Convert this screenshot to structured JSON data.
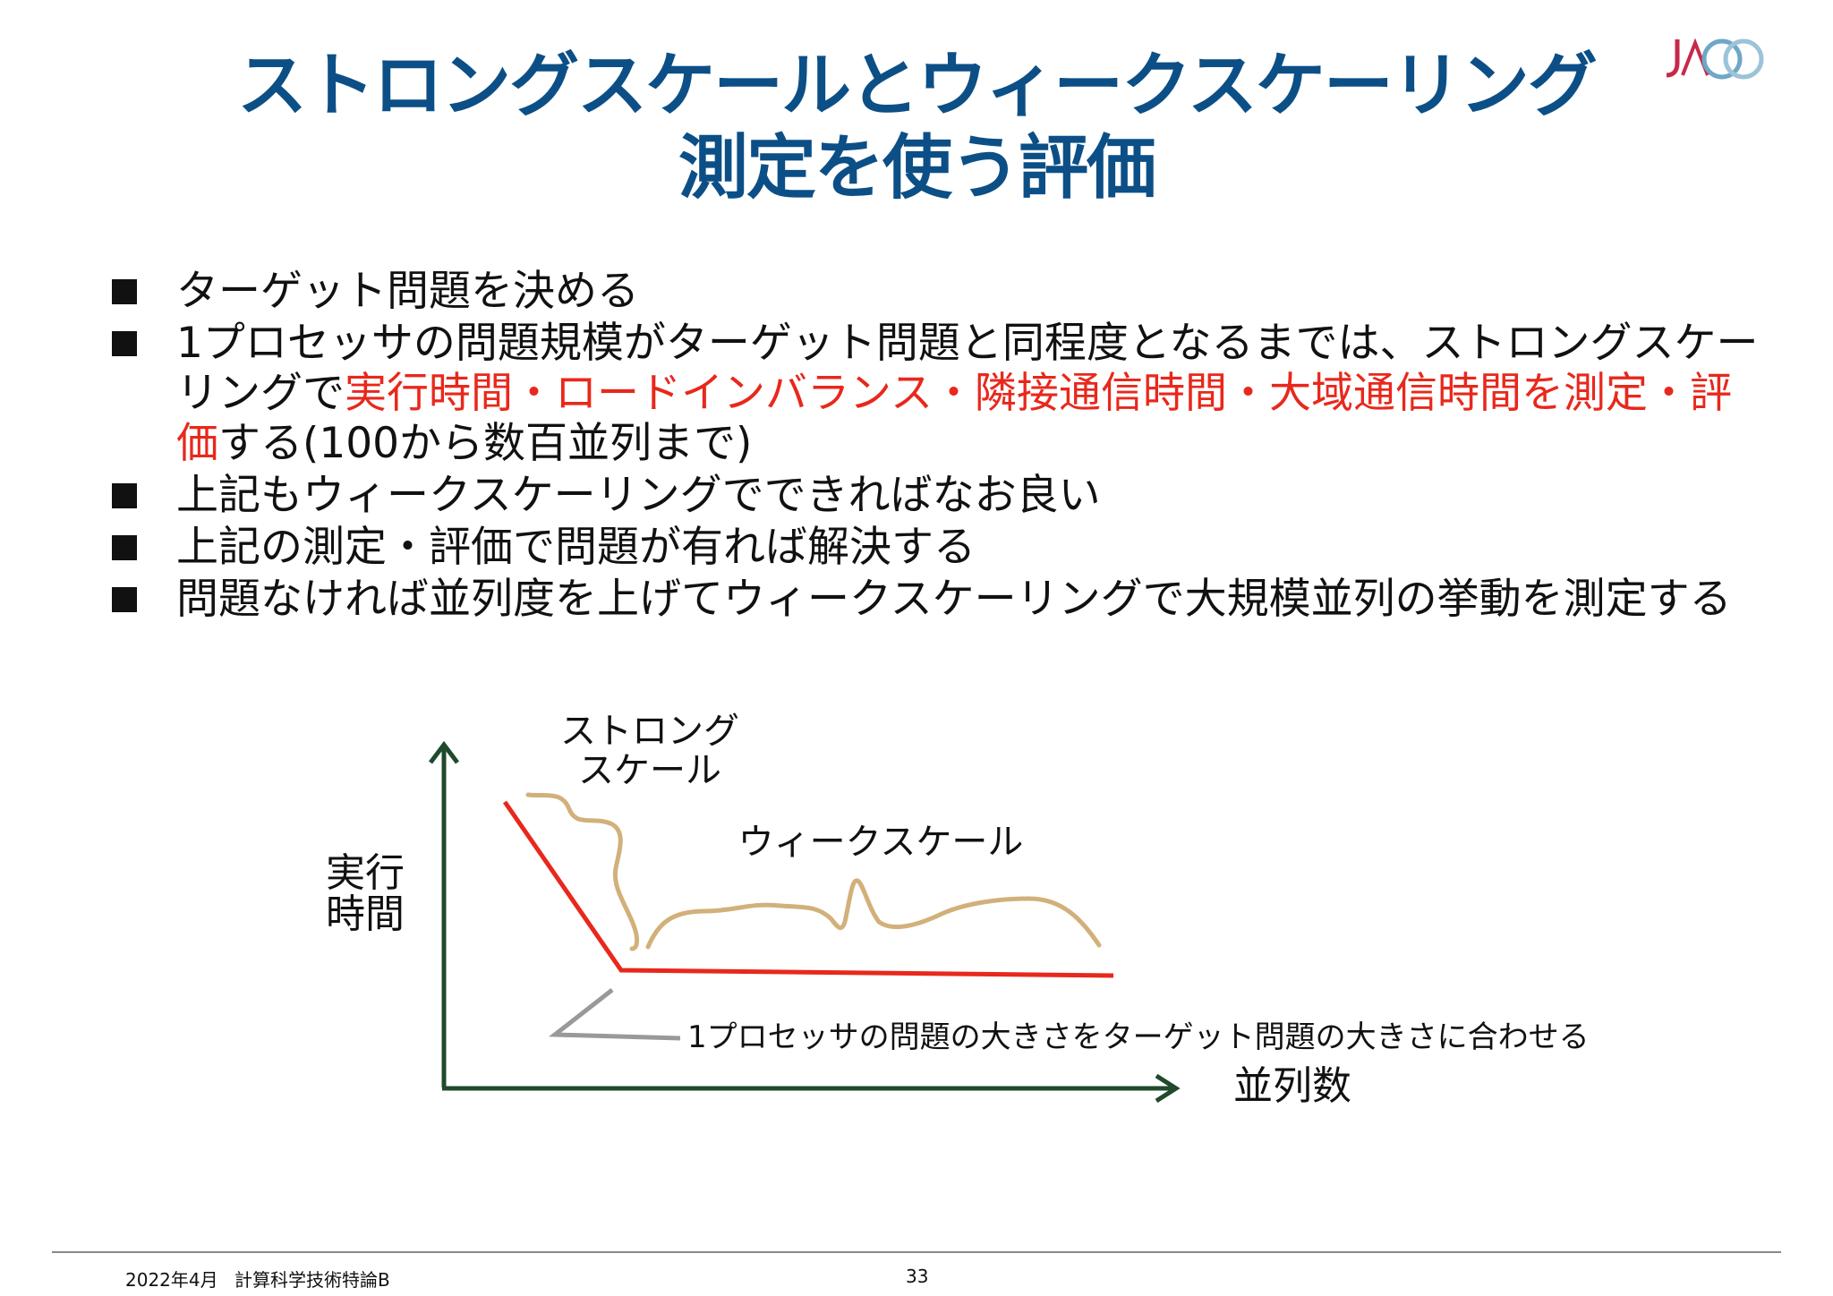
{
  "title": {
    "line1": "ストロングスケールとウィークスケーリング",
    "line2": "測定を使う評価"
  },
  "bullets": [
    {
      "text": "ターゲット問題を決める"
    },
    {
      "text_before": "1プロセッサの問題規模がターゲット問題と同程度となるまでは、ストロングスケーリングで",
      "highlight": "実行時間・ロードインバランス・隣接通信時間・大域通信時間を測定・評価",
      "text_after": "する(100から数百並列まで)"
    },
    {
      "text": "上記もウィークスケーリングでできればなお良い"
    },
    {
      "text": "上記の測定・評価で問題が有れば解決する"
    },
    {
      "text": "問題なければ並列度を上げてウィークスケーリングで大規模並列の挙動を測定する"
    }
  ],
  "diagram": {
    "y_axis_label_line1": "実行",
    "y_axis_label_line2": "時間",
    "x_axis_label": "並列数",
    "strong_label_line1": "ストロング",
    "strong_label_line2": "スケール",
    "weak_label": "ウィークスケール",
    "annotation": "1プロセッサの問題の大きさをターゲット問題の大きさに合わせる"
  },
  "colors": {
    "title": "#0c4f86",
    "highlight": "#e8281c",
    "axis": "#1f4a2c",
    "red_curve": "#e8281c",
    "tan_curve": "#d2b07a",
    "gray_line": "#999999"
  },
  "footer": {
    "date": "2022年4月",
    "course": "計算科学技術特論B",
    "page": "33"
  }
}
